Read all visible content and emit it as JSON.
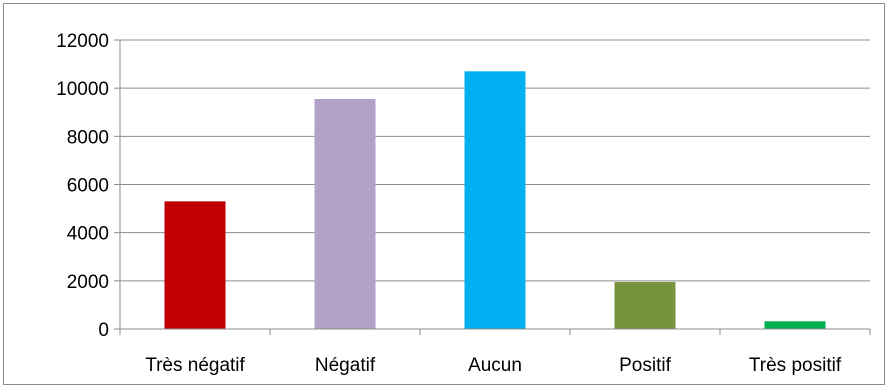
{
  "chart_data": {
    "type": "bar",
    "categories": [
      "Très négatif",
      "Négatif",
      "Aucun",
      "Positif",
      "Très positif"
    ],
    "values": [
      5300,
      9550,
      10700,
      1950,
      320
    ],
    "colors": [
      "#c00000",
      "#b3a2c7",
      "#00b0f0",
      "#77933c",
      "#00b050"
    ],
    "title": "",
    "xlabel": "",
    "ylabel": "",
    "ylim": [
      0,
      12000
    ],
    "yticks": [
      0,
      2000,
      4000,
      6000,
      8000,
      10000,
      12000
    ],
    "ytick_labels": [
      "0",
      "2000",
      "4000",
      "6000",
      "8000",
      "10000",
      "12000"
    ],
    "grid": true,
    "legend": "none"
  }
}
